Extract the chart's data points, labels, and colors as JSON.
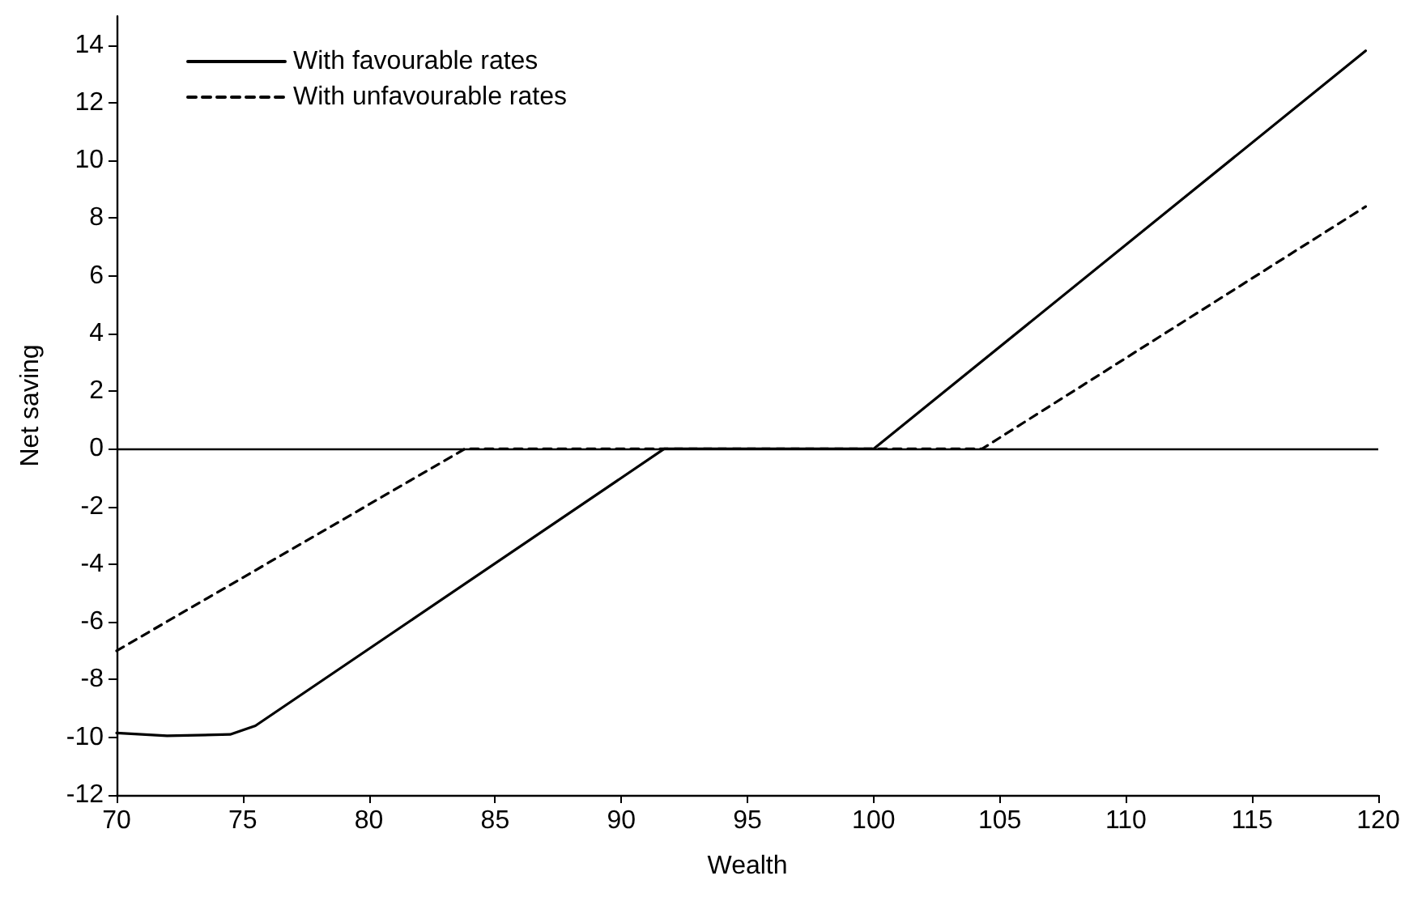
{
  "chart_data": {
    "type": "line",
    "xlabel": "Wealth",
    "ylabel": "Net saving",
    "series": [
      {
        "name": "With favourable rates",
        "color": "#000000",
        "line_style": "solid",
        "x": [
          70,
          72,
          74.5,
          75.5,
          91.7,
          100,
          119.5
        ],
        "values": [
          -9.85,
          -9.95,
          -9.9,
          -9.6,
          0,
          0,
          13.8
        ]
      },
      {
        "name": "With unfavourable rates",
        "color": "#000000",
        "line_style": "dashed",
        "x": [
          70,
          83.8,
          104.3,
          119.5
        ],
        "values": [
          -7,
          0,
          0,
          8.4
        ]
      }
    ],
    "xlim": [
      70,
      120
    ],
    "xticks": [
      70,
      75,
      80,
      85,
      90,
      95,
      100,
      105,
      110,
      115,
      120
    ],
    "ylim": [
      -12,
      15
    ],
    "yticks": [
      -12,
      -10,
      -8,
      -6,
      -4,
      -2,
      0,
      2,
      4,
      6,
      8,
      10,
      12,
      14
    ],
    "ref_lines": [
      {
        "axis": "y",
        "value": 0,
        "color": "#000000"
      }
    ],
    "grid": false,
    "legend": "top left",
    "marker": "none"
  }
}
